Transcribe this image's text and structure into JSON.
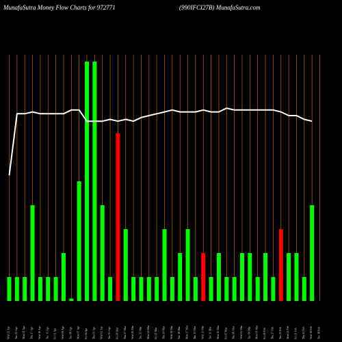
{
  "chart_data": {
    "type": "bar",
    "title": "MunafaSutra  Money Flow  Charts for 972771",
    "subtitle": "(990IFCI27B) MunafaSutra.com",
    "categories": [
      "Wed 23 Apr",
      "Tue 22 Apr",
      "Mon 21 Apr",
      "Thu 17 Apr",
      "Wed 16 Apr",
      "Tue 15 Apr",
      "Fri 11 Apr",
      "Wed 09 Apr",
      "Tue 08 Apr",
      "Mon 07 Apr",
      "Fri 04 Apr",
      "Thu 03 Apr",
      "Wed 02 Apr",
      "Tue 01 Apr",
      "Fri 28 Mar",
      "Thu 27 Mar",
      "Wed 26 Mar",
      "Tue 25 Mar",
      "Mon 24 Mar",
      "Fri 21 Mar",
      "Thu 20 Mar",
      "Wed 19 Mar",
      "Tue 18 Mar",
      "Mon 17 Mar",
      "Thu 13 Mar",
      "Wed 12 Mar",
      "Tue 11 Mar",
      "Mon 10 Mar",
      "Fri 07 Mar",
      "Thu 06 Mar",
      "Wed 05 Mar",
      "Tue 04 Mar",
      "Mon 03 Mar",
      "Fri 28 Feb",
      "Thu 27 Feb",
      "Tue 25 Feb",
      "Mon 24 Feb",
      "Fri 21 Feb",
      "Thu 20 Feb",
      "Wed 19 Feb",
      "Tue 18 Feb"
    ],
    "bar_values": [
      10,
      10,
      10,
      40,
      10,
      10,
      10,
      20,
      1,
      50,
      100,
      100,
      40,
      10,
      70,
      30,
      10,
      10,
      10,
      10,
      30,
      10,
      20,
      30,
      10,
      20,
      10,
      20,
      10,
      10,
      20,
      20,
      10,
      20,
      10,
      30,
      20,
      20,
      10,
      40,
      null
    ],
    "bar_colors": [
      "green",
      "green",
      "green",
      "green",
      "green",
      "green",
      "green",
      "green",
      "green",
      "green",
      "green",
      "green",
      "green",
      "green",
      "red",
      "green",
      "green",
      "green",
      "green",
      "green",
      "green",
      "green",
      "green",
      "green",
      "green",
      "red",
      "green",
      "green",
      "green",
      "green",
      "green",
      "green",
      "green",
      "green",
      "green",
      "red",
      "green",
      "green",
      "green",
      "green",
      null
    ],
    "line_values": [
      20,
      53,
      53,
      54,
      53,
      53,
      53,
      53,
      55,
      55,
      49,
      49,
      49,
      50,
      49,
      50,
      49,
      51,
      52,
      53,
      54,
      55,
      54,
      54,
      54,
      55,
      54,
      54,
      56,
      55,
      55,
      55,
      55,
      55,
      55,
      54,
      52,
      52,
      50,
      49,
      null
    ],
    "colors": {
      "green": "#00ff00",
      "red": "#ff0000",
      "line": "#ffffff",
      "grid": "#c46a00",
      "background": "#000000"
    },
    "grid": true
  }
}
